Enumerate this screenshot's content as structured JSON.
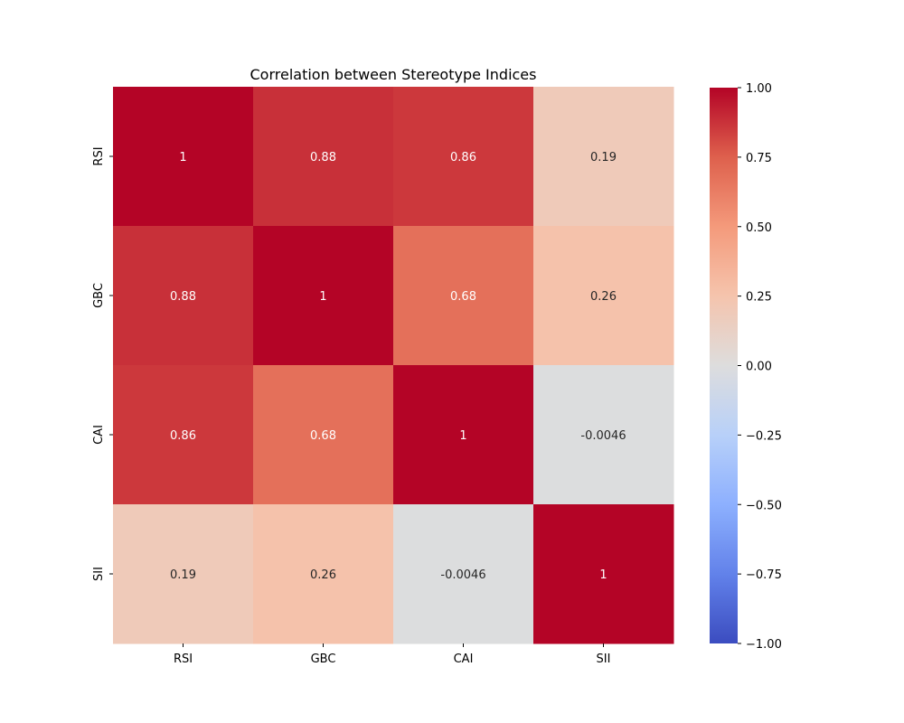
{
  "chart_data": {
    "type": "heatmap",
    "title": "Correlation between Stereotype Indices",
    "x_labels": [
      "RSI",
      "GBC",
      "CAI",
      "SII"
    ],
    "y_labels": [
      "RSI",
      "GBC",
      "CAI",
      "SII"
    ],
    "values": [
      [
        1.0,
        0.88,
        0.86,
        0.19
      ],
      [
        0.88,
        1.0,
        0.68,
        0.26
      ],
      [
        0.86,
        0.68,
        1.0,
        -0.0046
      ],
      [
        0.19,
        0.26,
        -0.0046,
        1.0
      ]
    ],
    "annotations": [
      [
        "1",
        "0.88",
        "0.86",
        "0.19"
      ],
      [
        "0.88",
        "1",
        "0.68",
        "0.26"
      ],
      [
        "0.86",
        "0.68",
        "1",
        "-0.0046"
      ],
      [
        "0.19",
        "0.26",
        "-0.0046",
        "1"
      ]
    ],
    "colormap": "coolwarm",
    "vmin": -1.0,
    "vmax": 1.0,
    "colorbar_ticks": [
      1.0,
      0.75,
      0.5,
      0.25,
      0.0,
      -0.25,
      -0.5,
      -0.75,
      -1.0
    ],
    "colorbar_tick_labels": [
      "1.00",
      "0.75",
      "0.50",
      "0.25",
      "0.00",
      "−0.25",
      "−0.50",
      "−0.75",
      "−1.00"
    ],
    "legend_position": "right"
  }
}
